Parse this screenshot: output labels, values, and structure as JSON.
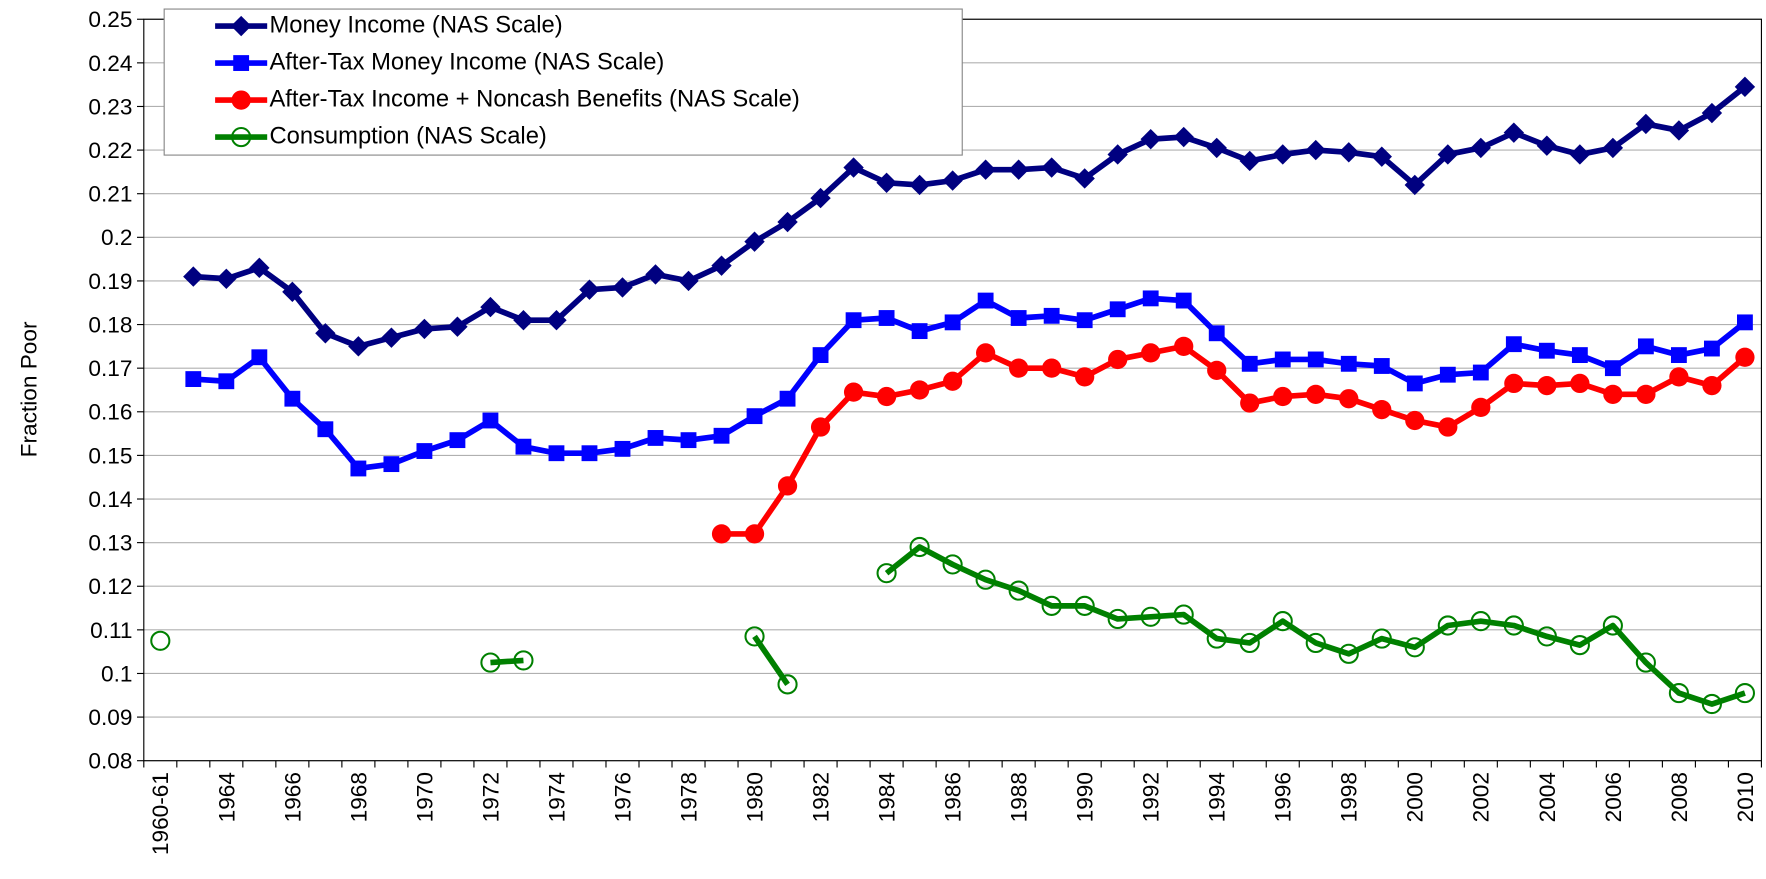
{
  "chart_data": {
    "type": "line",
    "y_label": "Fraction Poor",
    "categories": [
      "1960-61",
      null,
      "1964",
      null,
      "1966",
      null,
      "1968",
      null,
      "1970",
      null,
      "1972",
      null,
      "1974",
      null,
      "1976",
      null,
      "1978",
      null,
      "1980",
      null,
      "1982",
      null,
      "1984",
      null,
      "1986",
      null,
      "1988",
      null,
      "1990",
      null,
      "1992",
      null,
      "1994",
      null,
      "1996",
      null,
      "1998",
      null,
      "2000",
      null,
      "2002",
      null,
      "2004",
      null,
      "2006",
      null,
      "2008",
      null,
      "2010"
    ],
    "ylim": [
      0.08,
      0.25
    ],
    "yticks": [
      0.08,
      0.09,
      0.1,
      0.11,
      0.12,
      0.13,
      0.14,
      0.15,
      0.16,
      0.17,
      0.18,
      0.19,
      0.2,
      0.21,
      0.22,
      0.23,
      0.24,
      0.25
    ],
    "grid": true,
    "legend": "top-left",
    "series": [
      {
        "name": "Money Income (NAS Scale)",
        "color": "#000080",
        "marker": "diamond",
        "values": [
          null,
          0.191,
          0.1905,
          0.193,
          0.1875,
          0.178,
          0.175,
          0.177,
          0.179,
          0.1795,
          0.184,
          0.181,
          0.181,
          0.188,
          0.1885,
          0.1915,
          0.19,
          0.1935,
          0.199,
          0.2035,
          0.209,
          0.216,
          0.2125,
          0.212,
          0.213,
          0.2155,
          0.2155,
          0.216,
          0.2135,
          0.219,
          0.2225,
          0.223,
          0.2205,
          0.2175,
          0.219,
          0.22,
          0.2195,
          0.2185,
          0.212,
          0.219,
          0.2205,
          0.224,
          0.221,
          0.219,
          0.2205,
          0.226,
          0.2245,
          0.2285,
          0.2345
        ]
      },
      {
        "name": "After-Tax Money Income (NAS Scale)",
        "color": "#0000ff",
        "marker": "square",
        "values": [
          null,
          0.1675,
          0.167,
          0.1725,
          0.163,
          0.156,
          0.147,
          0.148,
          0.151,
          0.1535,
          0.158,
          0.152,
          0.1505,
          0.1505,
          0.1515,
          0.154,
          0.1535,
          0.1545,
          0.159,
          0.163,
          0.173,
          0.181,
          0.1815,
          0.1785,
          0.1805,
          0.1855,
          0.1815,
          0.182,
          0.181,
          0.1835,
          0.186,
          0.1855,
          0.178,
          0.171,
          0.172,
          0.172,
          0.171,
          0.1705,
          0.1665,
          0.1685,
          0.169,
          0.1755,
          0.174,
          0.173,
          0.17,
          0.175,
          0.173,
          0.1745,
          0.1805
        ]
      },
      {
        "name": "After-Tax Income + Noncash Benefits (NAS Scale)",
        "color": "#ff0000",
        "marker": "circle",
        "values": [
          null,
          null,
          null,
          null,
          null,
          null,
          null,
          null,
          null,
          null,
          null,
          null,
          null,
          null,
          null,
          null,
          null,
          0.132,
          0.132,
          0.143,
          0.1565,
          0.1645,
          0.1635,
          0.165,
          0.167,
          0.1735,
          0.17,
          0.17,
          0.168,
          0.172,
          0.1735,
          0.175,
          0.1695,
          0.162,
          0.1635,
          0.164,
          0.163,
          0.1605,
          0.158,
          0.1565,
          0.161,
          0.1665,
          0.166,
          0.1665,
          0.164,
          0.164,
          0.168,
          0.166,
          0.1725
        ]
      },
      {
        "name": "Consumption (NAS Scale)",
        "color": "#008000",
        "marker": "open-circle",
        "values": [
          0.1075,
          null,
          null,
          null,
          null,
          null,
          null,
          null,
          null,
          null,
          0.1025,
          0.103,
          null,
          null,
          null,
          null,
          null,
          null,
          0.1085,
          0.0975,
          null,
          null,
          0.123,
          0.129,
          0.125,
          0.1215,
          0.119,
          0.1155,
          0.1155,
          0.1125,
          0.113,
          0.1135,
          0.108,
          0.107,
          0.112,
          0.107,
          0.1045,
          0.108,
          0.106,
          0.111,
          0.112,
          0.111,
          0.1085,
          0.1065,
          0.111,
          0.1025,
          0.0955,
          0.093,
          0.0955
        ]
      }
    ]
  }
}
